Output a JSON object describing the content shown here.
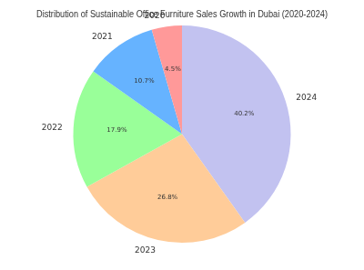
{
  "chart_data": {
    "type": "pie",
    "title": "Distribution of Sustainable Office Furniture Sales Growth in Dubai (2020-2024)",
    "categories": [
      "2020",
      "2021",
      "2022",
      "2023",
      "2024"
    ],
    "values": [
      4.5,
      10.7,
      17.9,
      26.8,
      40.2
    ],
    "value_labels": [
      "4.5%",
      "10.7%",
      "17.9%",
      "26.8%",
      "40.2%"
    ],
    "colors": [
      "#ff9999",
      "#66b3ff",
      "#99ff99",
      "#ffcc99",
      "#c2c2f0"
    ],
    "data_labels": true
  }
}
